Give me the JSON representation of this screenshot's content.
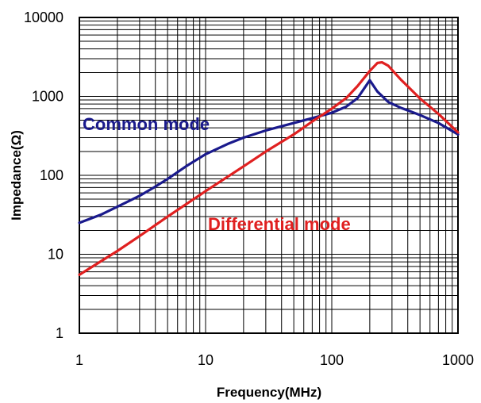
{
  "chart_data": {
    "type": "line",
    "title": "",
    "xlabel": "Frequency(MHz)",
    "ylabel": "Impedance(Ω)",
    "x_scale": "log",
    "y_scale": "log",
    "xlim": [
      1,
      1000
    ],
    "ylim": [
      1,
      10000
    ],
    "grid": true,
    "x_ticks": [
      "1",
      "10",
      "100",
      "1000"
    ],
    "y_ticks": [
      "1",
      "10",
      "100",
      "1000",
      "10000"
    ],
    "series": [
      {
        "name": "Common mode",
        "color": "#1a1a8c",
        "x": [
          1,
          1.5,
          2,
          3,
          4,
          5,
          7,
          10,
          15,
          20,
          30,
          50,
          70,
          100,
          130,
          160,
          200,
          230,
          280,
          350,
          500,
          700,
          1000
        ],
        "y": [
          25,
          32,
          40,
          55,
          72,
          90,
          130,
          185,
          250,
          300,
          370,
          460,
          530,
          620,
          740,
          950,
          1600,
          1150,
          850,
          720,
          580,
          460,
          330
        ]
      },
      {
        "name": "Differential mode",
        "color": "#e02020",
        "x": [
          1,
          2,
          3,
          5,
          10,
          20,
          30,
          50,
          70,
          100,
          130,
          160,
          200,
          230,
          250,
          280,
          350,
          500,
          700,
          1000
        ],
        "y": [
          5.5,
          11,
          17,
          30,
          63,
          130,
          200,
          330,
          480,
          700,
          950,
          1350,
          2100,
          2650,
          2700,
          2450,
          1650,
          940,
          600,
          350
        ]
      }
    ],
    "annotations": [
      "Common mode",
      "Differential mode"
    ]
  }
}
